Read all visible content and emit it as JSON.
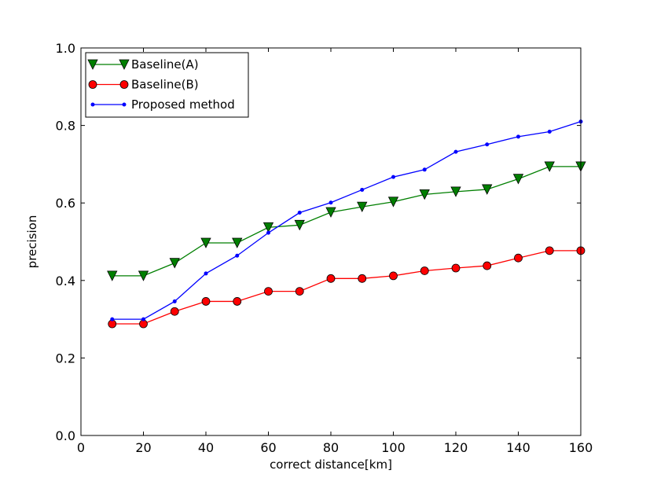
{
  "chart_data": {
    "type": "line",
    "title": "",
    "xlabel": "correct distance[km]",
    "ylabel": "precision",
    "xlim": [
      0,
      160
    ],
    "ylim": [
      0.0,
      1.0
    ],
    "xticks": [
      "0",
      "20",
      "40",
      "60",
      "80",
      "100",
      "120",
      "140",
      "160"
    ],
    "yticks": [
      "0.0",
      "0.2",
      "0.4",
      "0.6",
      "0.8",
      "1.0"
    ],
    "grid": false,
    "legend_position": "top-left",
    "x": [
      10,
      20,
      30,
      40,
      50,
      60,
      70,
      80,
      90,
      100,
      110,
      120,
      130,
      140,
      150,
      160
    ],
    "series": [
      {
        "name": "Baseline(A)",
        "color": "#007f00",
        "marker": "triangle-down",
        "values": [
          0.412,
          0.412,
          0.445,
          0.497,
          0.497,
          0.537,
          0.543,
          0.576,
          0.59,
          0.603,
          0.622,
          0.629,
          0.635,
          0.662,
          0.694,
          0.694
        ]
      },
      {
        "name": "Baseline(B)",
        "color": "#ff0000",
        "marker": "circle",
        "values": [
          0.288,
          0.288,
          0.32,
          0.346,
          0.346,
          0.372,
          0.372,
          0.405,
          0.405,
          0.412,
          0.425,
          0.432,
          0.438,
          0.458,
          0.477,
          0.477
        ]
      },
      {
        "name": "Proposed method",
        "color": "#0000ff",
        "marker": "point",
        "values": [
          0.3,
          0.3,
          0.346,
          0.418,
          0.464,
          0.523,
          0.575,
          0.601,
          0.634,
          0.667,
          0.686,
          0.732,
          0.751,
          0.771,
          0.784,
          0.81
        ]
      }
    ]
  }
}
